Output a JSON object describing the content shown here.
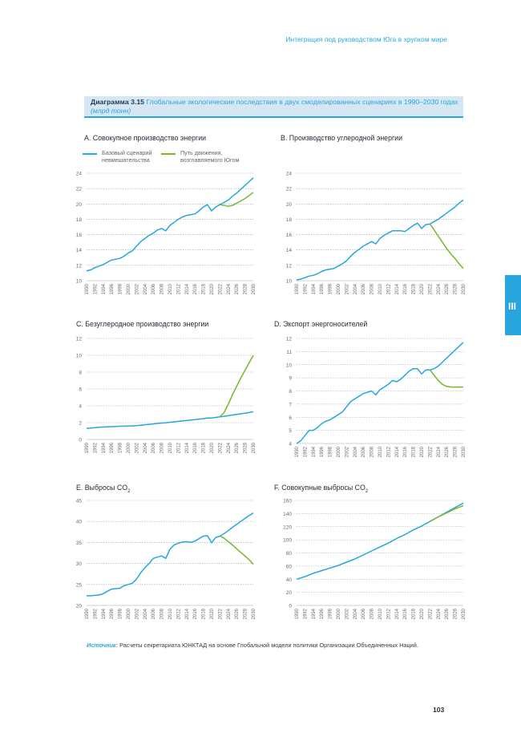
{
  "header": {
    "running_head": "Интеграция под руководством Юга в хрупком мире"
  },
  "figure": {
    "number": "Диаграмма 3.15",
    "title": "Глобальные экологические последствия в двух смоделированных сценариях в 1990–2030 годах",
    "unit": "(млрд тонн)"
  },
  "chapter_tab": {
    "label": "III"
  },
  "legend": [
    {
      "label": "Базовый сценарий невмешательства",
      "color": "#26a6dd"
    },
    {
      "label": "Путь движения, возглавляемого Югом",
      "color": "#76b82a"
    }
  ],
  "colors": {
    "baseline": "#26a6dd",
    "south": "#76b82a",
    "accent": "#26a6dd",
    "grid": "#9aa5ad"
  },
  "chart_data": [
    {
      "panel": "A",
      "title": "А. Совокупное производство энергии",
      "type": "line",
      "ylim": [
        10,
        24
      ],
      "yticks": [
        10,
        12,
        14,
        16,
        18,
        20,
        22,
        24
      ],
      "x_start": 1990,
      "x_end": 2030,
      "series": [
        {
          "name": "Базовый сценарий невмешательства",
          "x": [
            1990,
            1991,
            1992,
            1993,
            1994,
            1995,
            1996,
            1997,
            1998,
            1999,
            2000,
            2001,
            2002,
            2003,
            2004,
            2005,
            2006,
            2007,
            2008,
            2009,
            2010,
            2011,
            2012,
            2013,
            2014,
            2015,
            2016,
            2017,
            2018,
            2019,
            2020,
            2021,
            2022,
            2023,
            2024,
            2025,
            2026,
            2027,
            2028,
            2029,
            2030
          ],
          "values": [
            11.3,
            11.4,
            11.7,
            11.9,
            12.1,
            12.4,
            12.7,
            12.8,
            12.9,
            13.2,
            13.6,
            13.9,
            14.5,
            15.1,
            15.5,
            15.9,
            16.2,
            16.6,
            16.8,
            16.5,
            17.2,
            17.6,
            18.0,
            18.3,
            18.5,
            18.6,
            18.7,
            19.1,
            19.6,
            19.9,
            19.1,
            19.6,
            19.9,
            20.2,
            20.5,
            21.0,
            21.4,
            21.9,
            22.4,
            22.9,
            23.4
          ]
        },
        {
          "name": "Путь движения, возглавляемого Югом",
          "x": [
            2022,
            2023,
            2024,
            2025,
            2026,
            2027,
            2028,
            2029,
            2030
          ],
          "values": [
            19.9,
            19.8,
            19.7,
            19.8,
            20.1,
            20.4,
            20.7,
            21.1,
            21.5
          ]
        }
      ]
    },
    {
      "panel": "B",
      "title": "B. Производство углеродной энергии",
      "type": "line",
      "ylim": [
        10,
        24
      ],
      "yticks": [
        10,
        12,
        14,
        16,
        18,
        20,
        22,
        24
      ],
      "x_start": 1990,
      "x_end": 2030,
      "series": [
        {
          "name": "Базовый сценарий невмешательства",
          "x": [
            1990,
            1991,
            1992,
            1993,
            1994,
            1995,
            1996,
            1997,
            1998,
            1999,
            2000,
            2001,
            2002,
            2003,
            2004,
            2005,
            2006,
            2007,
            2008,
            2009,
            2010,
            2011,
            2012,
            2013,
            2014,
            2015,
            2016,
            2017,
            2018,
            2019,
            2020,
            2021,
            2022,
            2023,
            2024,
            2025,
            2026,
            2027,
            2028,
            2029,
            2030
          ],
          "values": [
            10.1,
            10.2,
            10.4,
            10.6,
            10.7,
            10.9,
            11.2,
            11.4,
            11.5,
            11.6,
            11.9,
            12.2,
            12.6,
            13.2,
            13.7,
            14.1,
            14.5,
            14.8,
            15.1,
            14.8,
            15.5,
            15.9,
            16.2,
            16.5,
            16.5,
            16.5,
            16.4,
            16.8,
            17.2,
            17.5,
            16.8,
            17.3,
            17.4,
            17.7,
            18.0,
            18.4,
            18.8,
            19.2,
            19.6,
            20.1,
            20.5
          ]
        },
        {
          "name": "Путь движения, возглавляемого Югом",
          "x": [
            2022,
            2023,
            2024,
            2025,
            2026,
            2027,
            2028,
            2029,
            2030
          ],
          "values": [
            17.4,
            16.6,
            15.8,
            15.0,
            14.2,
            13.5,
            12.9,
            12.2,
            11.6
          ]
        }
      ]
    },
    {
      "panel": "C",
      "title": "C. Безуглеродное производство энергии",
      "type": "line",
      "ylim": [
        0,
        12
      ],
      "yticks": [
        0,
        2,
        4,
        6,
        8,
        10,
        12
      ],
      "x_start": 1990,
      "x_end": 2030,
      "series": [
        {
          "name": "Базовый сценарий невмешательства",
          "x": [
            1990,
            1991,
            1992,
            1993,
            1994,
            1995,
            1996,
            1997,
            1998,
            1999,
            2000,
            2001,
            2002,
            2003,
            2004,
            2005,
            2006,
            2007,
            2008,
            2009,
            2010,
            2011,
            2012,
            2013,
            2014,
            2015,
            2016,
            2017,
            2018,
            2019,
            2020,
            2021,
            2022,
            2023,
            2024,
            2025,
            2026,
            2027,
            2028,
            2029,
            2030
          ],
          "values": [
            1.3,
            1.35,
            1.4,
            1.45,
            1.48,
            1.5,
            1.52,
            1.55,
            1.57,
            1.58,
            1.6,
            1.62,
            1.65,
            1.7,
            1.75,
            1.8,
            1.85,
            1.9,
            1.95,
            1.98,
            2.05,
            2.1,
            2.15,
            2.2,
            2.25,
            2.3,
            2.35,
            2.42,
            2.48,
            2.55,
            2.55,
            2.62,
            2.7,
            2.75,
            2.82,
            2.9,
            2.98,
            3.05,
            3.12,
            3.2,
            3.3
          ]
        },
        {
          "name": "Путь движения, возглавляемого Югом",
          "x": [
            2022,
            2023,
            2024,
            2025,
            2026,
            2027,
            2028,
            2029,
            2030
          ],
          "values": [
            2.7,
            3.2,
            4.2,
            5.3,
            6.3,
            7.3,
            8.2,
            9.1,
            10.0
          ]
        }
      ]
    },
    {
      "panel": "D",
      "title": "D. Экспорт энергоносителей",
      "type": "line",
      "ylim": [
        4,
        12
      ],
      "yticks": [
        4,
        5,
        6,
        7,
        8,
        9,
        10,
        11,
        12
      ],
      "x_start": 1990,
      "x_end": 2030,
      "series": [
        {
          "name": "Базовый сценарий невмешательства",
          "x": [
            1990,
            1991,
            1992,
            1993,
            1994,
            1995,
            1996,
            1997,
            1998,
            1999,
            2000,
            2001,
            2002,
            2003,
            2004,
            2005,
            2006,
            2007,
            2008,
            2009,
            2010,
            2011,
            2012,
            2013,
            2014,
            2015,
            2016,
            2017,
            2018,
            2019,
            2020,
            2021,
            2022,
            2023,
            2024,
            2025,
            2026,
            2027,
            2028,
            2029,
            2030
          ],
          "values": [
            4.0,
            4.2,
            4.6,
            5.0,
            5.0,
            5.2,
            5.5,
            5.7,
            5.8,
            6.0,
            6.2,
            6.4,
            6.8,
            7.2,
            7.4,
            7.6,
            7.8,
            7.9,
            8.0,
            7.7,
            8.1,
            8.3,
            8.5,
            8.8,
            8.7,
            8.9,
            9.2,
            9.5,
            9.7,
            9.7,
            9.3,
            9.6,
            9.6,
            9.7,
            9.9,
            10.2,
            10.5,
            10.8,
            11.1,
            11.4,
            11.7
          ]
        },
        {
          "name": "Путь движения, возглавляемого Югом",
          "x": [
            2022,
            2023,
            2024,
            2025,
            2026,
            2027,
            2028,
            2029,
            2030
          ],
          "values": [
            9.6,
            9.2,
            8.8,
            8.5,
            8.35,
            8.3,
            8.3,
            8.3,
            8.3
          ]
        }
      ]
    },
    {
      "panel": "E",
      "title": "E. Выбросы CO",
      "title_sub": "2",
      "type": "line",
      "ylim": [
        20,
        45
      ],
      "yticks": [
        20,
        25,
        30,
        35,
        40,
        45
      ],
      "x_start": 1990,
      "x_end": 2030,
      "series": [
        {
          "name": "Базовый сценарий невмешательства",
          "x": [
            1990,
            1991,
            1992,
            1993,
            1994,
            1995,
            1996,
            1997,
            1998,
            1999,
            2000,
            2001,
            2002,
            2003,
            2004,
            2005,
            2006,
            2007,
            2008,
            2009,
            2010,
            2011,
            2012,
            2013,
            2014,
            2015,
            2016,
            2017,
            2018,
            2019,
            2020,
            2021,
            2022,
            2023,
            2024,
            2025,
            2026,
            2027,
            2028,
            2029,
            2030
          ],
          "values": [
            22.3,
            22.3,
            22.4,
            22.5,
            22.8,
            23.4,
            23.9,
            24.0,
            24.1,
            24.7,
            25.0,
            25.3,
            26.3,
            27.8,
            29.0,
            30.0,
            31.2,
            31.5,
            31.8,
            31.2,
            33.4,
            34.4,
            34.8,
            35.1,
            35.2,
            35.0,
            35.3,
            35.9,
            36.5,
            36.6,
            34.9,
            36.2,
            36.5,
            37.1,
            37.8,
            38.6,
            39.3,
            40.0,
            40.7,
            41.4,
            42.0
          ]
        },
        {
          "name": "Путь движения, возглавляемого Югом",
          "x": [
            2022,
            2023,
            2024,
            2025,
            2026,
            2027,
            2028,
            2029,
            2030
          ],
          "values": [
            36.5,
            36.0,
            35.2,
            34.4,
            33.5,
            32.6,
            31.8,
            30.9,
            29.8
          ]
        }
      ]
    },
    {
      "panel": "F",
      "title": "F. Совокупные выбросы CO",
      "title_sub": "2",
      "type": "line",
      "ylim": [
        0,
        160
      ],
      "yticks": [
        0,
        20,
        40,
        60,
        80,
        100,
        120,
        140,
        160
      ],
      "x_start": 1990,
      "x_end": 2030,
      "series": [
        {
          "name": "Базовый сценарий невмешательства",
          "x": [
            1990,
            1992,
            1994,
            1996,
            1998,
            2000,
            2002,
            2004,
            2006,
            2008,
            2010,
            2012,
            2014,
            2016,
            2018,
            2020,
            2022,
            2024,
            2026,
            2028,
            2030
          ],
          "values": [
            40,
            44,
            49,
            53,
            57,
            61,
            66,
            71,
            77,
            83,
            89,
            95,
            102,
            108,
            115,
            121,
            128,
            135,
            142,
            149,
            156
          ]
        },
        {
          "name": "Путь движения, возглавляемого Югом",
          "x": [
            2022,
            2024,
            2026,
            2028,
            2030
          ],
          "values": [
            128,
            135,
            141,
            147,
            152
          ]
        }
      ]
    }
  ],
  "x_tick_labels": [
    "1990",
    "1992",
    "1994",
    "1996",
    "1998",
    "2000",
    "2002",
    "2004",
    "2006",
    "2008",
    "2010",
    "2012",
    "2014",
    "2016",
    "2018",
    "2020",
    "2022",
    "2024",
    "2026",
    "2028",
    "2030"
  ],
  "source": {
    "label": "Источник:",
    "text": "Расчеты секретариата ЮНКТАД на основе Глобальной модели политики Организации Объединенных Наций."
  },
  "page_number": "103"
}
